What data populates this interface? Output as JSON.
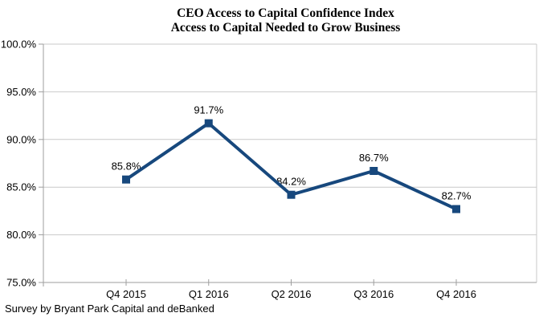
{
  "footer": "Survey by Bryant Park Capital and deBanked",
  "colors": {
    "background": "#FFFFFF",
    "series_line": "#17487D",
    "marker": "#17487D",
    "gridline": "#C9C9C9",
    "axis": "#9E9E9E",
    "text": "#000000"
  },
  "chart_data": {
    "type": "line",
    "title": "CEO Access to Capital Confidence Index",
    "subtitle": "Access to Capital Needed to Grow Business",
    "categories": [
      "Q4 2015",
      "Q1 2016",
      "Q2 2016",
      "Q3 2016",
      "Q4 2016"
    ],
    "values": [
      85.8,
      91.7,
      84.2,
      86.7,
      82.7
    ],
    "data_labels": [
      "85.8%",
      "91.7%",
      "84.2%",
      "86.7%",
      "82.7%"
    ],
    "y_tick_labels": [
      "100.0%",
      "95.0%",
      "90.0%",
      "85.0%",
      "80.0%",
      "75.0%"
    ],
    "y_tick_values": [
      100,
      95,
      90,
      85,
      80,
      75
    ],
    "ylim": [
      75,
      100
    ],
    "xlabel": "",
    "ylabel": "",
    "grid": true,
    "legend": "none",
    "marker": "square",
    "annotation": "Survey by Bryant Park Capital and deBanked"
  }
}
